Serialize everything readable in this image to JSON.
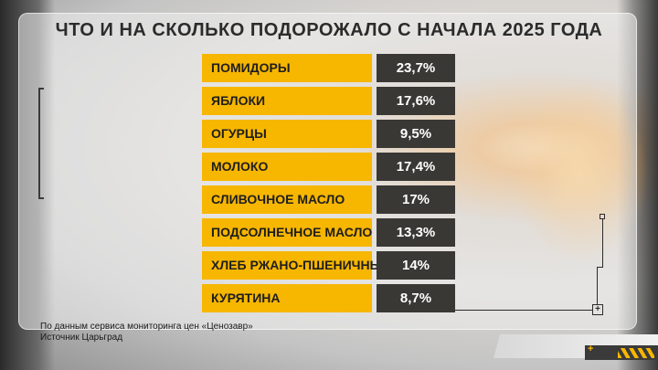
{
  "chart_data": {
    "type": "table",
    "title": "ЧТО И НА СКОЛЬКО ПОДОРОЖАЛО С НАЧАЛА 2025 ГОДА",
    "categories": [
      "ПОМИДОРЫ",
      "ЯБЛОКИ",
      "ОГУРЦЫ",
      "МОЛОКО",
      "СЛИВОЧНОЕ МАСЛО",
      "ПОДСОЛНЕЧНОЕ МАСЛО",
      "ХЛЕБ РЖАНО-ПШЕНИЧНЫЙ",
      "КУРЯТИНА"
    ],
    "values": [
      23.7,
      17.6,
      9.5,
      17.4,
      17,
      13.3,
      14,
      8.7
    ],
    "value_labels": [
      "23,7%",
      "17,6%",
      "9,5%",
      "17,4%",
      "17%",
      "13,3%",
      "14%",
      "8,7%"
    ],
    "xlabel": "",
    "ylabel": "",
    "grid": false,
    "colors": {
      "label_bg": "#f7b600",
      "value_bg": "#3a3835"
    }
  },
  "source": {
    "line1": "По данным сервиса мониторинга цен «Ценозавр»",
    "line2": "Источник Царьград"
  },
  "icons": [
    "plus-icon",
    "ticker-plus-icon"
  ]
}
